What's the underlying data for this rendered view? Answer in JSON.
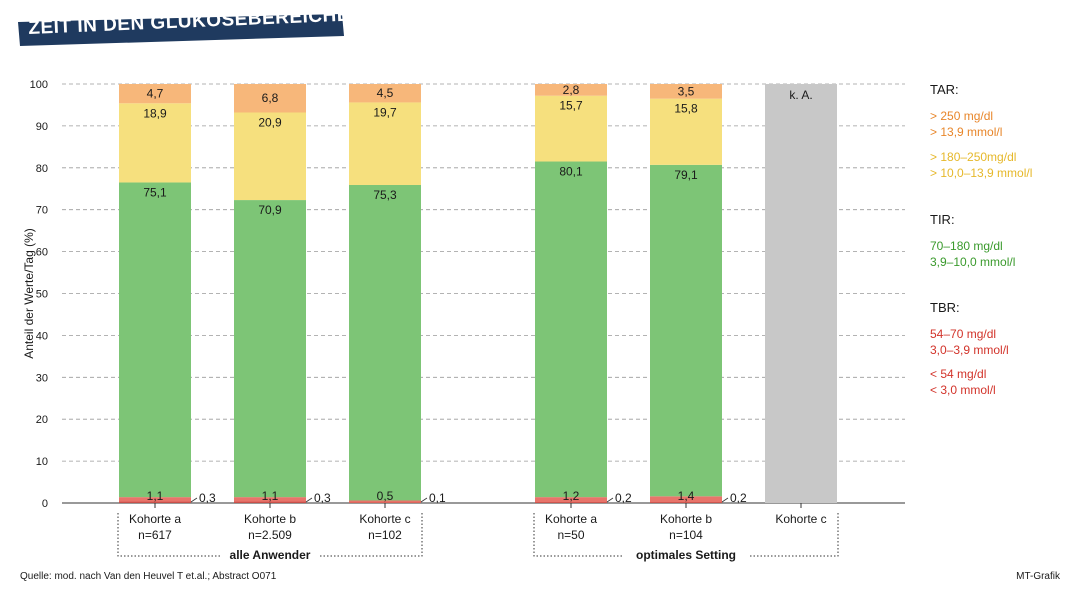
{
  "title": "ZEIT IN DEN GLUKOSEBEREICHEN",
  "source": "Quelle: mod. nach Van den Heuvel T et.al.; Abstract O071",
  "credit": "MT-Grafik",
  "legend": {
    "tar_heading": "TAR:",
    "tar_high_1": "> 250 mg/dl",
    "tar_high_2": "> 13,9 mmol/l",
    "tar_mid_1": "> 180–250mg/dl",
    "tar_mid_2": "> 10,0–13,9 mmol/l",
    "tir_heading": "TIR:",
    "tir_1": "70–180 mg/dl",
    "tir_2": "3,9–10,0 mmol/l",
    "tbr_heading": "TBR:",
    "tbr_mid_1": "54–70 mg/dl",
    "tbr_mid_2": "3,0–3,9 mmol/l",
    "tbr_low_1": "< 54 mg/dl",
    "tbr_low_2": "< 3,0 mmol/l"
  },
  "colors": {
    "tar_high": "#f7b77a",
    "tar_mid": "#f6e07e",
    "tir": "#7dc576",
    "tbr_mid": "#e8746a",
    "tbr_low": "#c8504a",
    "na": "#c8c8c8",
    "tar_high_text": "#e8862a",
    "tar_mid_text": "#e6b82a",
    "tir_text": "#3a9a2c",
    "tbr_text": "#d2332a",
    "title_bg": "#1f3a5f"
  },
  "chart_data": {
    "type": "bar",
    "stacked": true,
    "ylabel": "Anteil der Werte/Tag (%)",
    "ylim": [
      0,
      100
    ],
    "yticks": [
      0,
      10,
      20,
      30,
      40,
      50,
      60,
      70,
      80,
      90,
      100
    ],
    "grid": true,
    "categories": [
      "Kohorte a",
      "Kohorte b",
      "Kohorte c",
      "Kohorte a",
      "Kohorte b",
      "Kohorte c"
    ],
    "subcategories": [
      "n=617",
      "n=2.509",
      "n=102",
      "n=50",
      "n=104",
      ""
    ],
    "groups": [
      {
        "label": "alle Anwender",
        "members": [
          0,
          1,
          2
        ]
      },
      {
        "label": "optimales Setting",
        "members": [
          3,
          4,
          5
        ]
      }
    ],
    "series": [
      {
        "key": "tbr_low",
        "values": [
          0.3,
          0.3,
          0.1,
          0.2,
          0.2,
          null
        ],
        "labels": [
          "0,3",
          "0,3",
          "0,1",
          "0,2",
          "0,2",
          ""
        ]
      },
      {
        "key": "tbr_mid",
        "values": [
          1.1,
          1.1,
          0.5,
          1.2,
          1.4,
          null
        ],
        "labels": [
          "1,1",
          "1,1",
          "0,5",
          "1,2",
          "1,4",
          ""
        ]
      },
      {
        "key": "tir",
        "values": [
          75.1,
          70.9,
          75.3,
          80.1,
          79.1,
          null
        ],
        "labels": [
          "75,1",
          "70,9",
          "75,3",
          "80,1",
          "79,1",
          ""
        ]
      },
      {
        "key": "tar_mid",
        "values": [
          18.9,
          20.9,
          19.7,
          15.7,
          15.8,
          null
        ],
        "labels": [
          "18,9",
          "20,9",
          "19,7",
          "15,7",
          "15,8",
          ""
        ]
      },
      {
        "key": "tar_high",
        "values": [
          4.7,
          6.8,
          4.5,
          2.8,
          3.5,
          null
        ],
        "labels": [
          "4,7",
          "6,8",
          "4,5",
          "2,8",
          "3,5",
          ""
        ]
      }
    ],
    "not_available": [
      false,
      false,
      false,
      false,
      false,
      true
    ],
    "not_available_label": "k. A."
  }
}
